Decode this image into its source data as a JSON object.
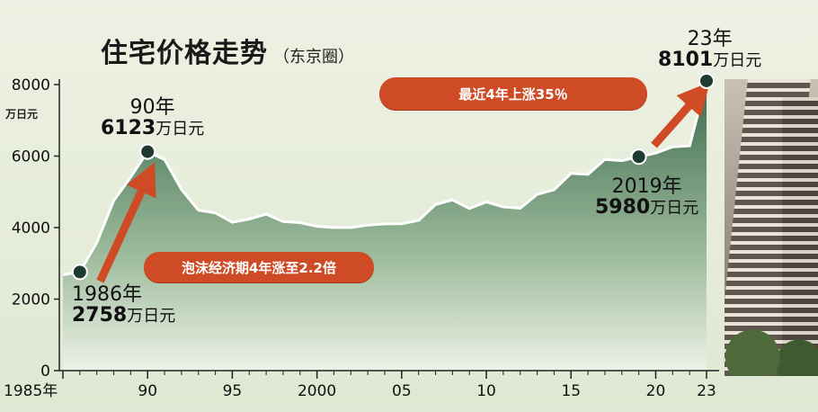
{
  "title": "住宅价格走势",
  "subtitle": "（东京圈）",
  "chart_data": {
    "type": "area",
    "title": "住宅价格走势",
    "subtitle": "（东京圈）",
    "ylabel": "万日元",
    "ylim": [
      0,
      8500
    ],
    "y_ticks": [
      "0",
      "2000",
      "4000",
      "6000",
      "8000"
    ],
    "x_range": [
      1985,
      2023
    ],
    "x_ticks": [
      {
        "year": 1985,
        "label": "1985年"
      },
      {
        "year": 1990,
        "label": "90"
      },
      {
        "year": 1995,
        "label": "95"
      },
      {
        "year": 2000,
        "label": "2000"
      },
      {
        "year": 2005,
        "label": "05"
      },
      {
        "year": 2010,
        "label": "10"
      },
      {
        "year": 2015,
        "label": "15"
      },
      {
        "year": 2020,
        "label": "20"
      },
      {
        "year": 2023,
        "label": "23"
      }
    ],
    "x": [
      1985,
      1986,
      1987,
      1988,
      1989,
      1990,
      1991,
      1992,
      1993,
      1994,
      1995,
      1996,
      1997,
      1998,
      1999,
      2000,
      2001,
      2002,
      2003,
      2004,
      2005,
      2006,
      2007,
      2008,
      2009,
      2010,
      2011,
      2012,
      2013,
      2014,
      2015,
      2016,
      2017,
      2018,
      2019,
      2020,
      2021,
      2022,
      2023
    ],
    "values": [
      2683,
      2758,
      3579,
      4753,
      5411,
      6123,
      5900,
      5066,
      4488,
      4409,
      4148,
      4238,
      4374,
      4168,
      4138,
      4034,
      4003,
      4003,
      4069,
      4104,
      4108,
      4200,
      4644,
      4775,
      4535,
      4716,
      4578,
      4540,
      4929,
      5060,
      5518,
      5490,
      5908,
      5871,
      5980,
      6083,
      6260,
      6288,
      8101
    ],
    "highlights": [
      {
        "year": 1986,
        "value": 2758,
        "year_label": "1986年",
        "value_label": "2758",
        "unit_label": "万日元"
      },
      {
        "year": 1990,
        "value": 6123,
        "year_label": "90年",
        "value_label": "6123",
        "unit_label": "万日元"
      },
      {
        "year": 2019,
        "value": 5980,
        "year_label": "2019年",
        "value_label": "5980",
        "unit_label": "万日元"
      },
      {
        "year": 2023,
        "value": 8101,
        "year_label": "23年",
        "value_label": "8101",
        "unit_label": "万日元"
      }
    ],
    "annotations": [
      "泡沫经济期4年涨至2.2倍",
      "最近4年上涨35％"
    ],
    "colors": {
      "area_top": "#3d6b4e",
      "area_bottom": "#edf2e6",
      "line": "#ffffff",
      "marker": "#1f3a30",
      "note": "#cf4b26"
    }
  }
}
